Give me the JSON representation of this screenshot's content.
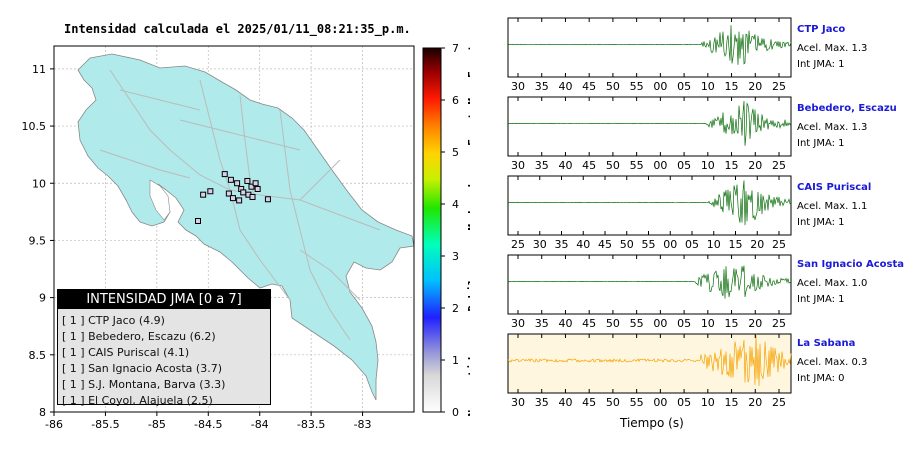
{
  "header": {
    "title": "Intensidad calculada el 2025/01/11_08:21:35_p.m."
  },
  "colorbar": {
    "ticks": [
      "0",
      "1",
      "2",
      "3",
      "4",
      "5",
      "6",
      "7"
    ],
    "categories": [
      "No sentido",
      "Debil",
      "Moderado",
      "Fuerte",
      "Muy Fuerte"
    ]
  },
  "legend": {
    "title": "INTENSIDAD JMA [0 a 7]",
    "items": [
      "[ 1 ]  CTP Jaco (4.9)",
      "[ 1 ]  Bebedero, Escazu (6.2)",
      "[ 1 ]  CAIS Puriscal (4.1)",
      "[ 1 ]  San Ignacio Acosta (3.7)",
      "[ 1 ]  S.J. Montana, Barva (3.3)",
      "[ 1 ]  El Coyol, Alajuela (2.5)"
    ]
  },
  "stations": [
    {
      "name": "CTP Jaco",
      "acel": "Acel. Max. 1.3",
      "int": "Int JMA: 1"
    },
    {
      "name": "Bebedero, Escazu",
      "acel": "Acel. Max. 1.3",
      "int": "Int JMA: 1"
    },
    {
      "name": "CAIS Puriscal",
      "acel": "Acel. Max. 1.1",
      "int": "Int JMA: 1"
    },
    {
      "name": "San Ignacio Acosta",
      "acel": "Acel. Max. 1.0",
      "int": "Int JMA: 1"
    },
    {
      "name": "La Sabana",
      "acel": "Acel. Max. 0.3",
      "int": "Int JMA: 0"
    }
  ],
  "xaxis_label": "Tiempo (s)",
  "chart_data": [
    {
      "type": "scatter",
      "title": "Intensidad calculada el 2025/01/11_08:21:35_p.m.",
      "xlim": [
        -86,
        -82.5
      ],
      "ylim": [
        8,
        11.2
      ],
      "xticks": [
        "-86",
        "-85.5",
        "-85",
        "-84.5",
        "-84",
        "-83.5",
        "-83"
      ],
      "yticks": [
        "8",
        "8.5",
        "9",
        "9.5",
        "10",
        "10.5",
        "11"
      ],
      "grid": true,
      "legend_position": "bottom-left",
      "colorbar_range": [
        0,
        7
      ],
      "points": [
        {
          "x": -84.55,
          "y": 9.9,
          "intensity": 1
        },
        {
          "x": -84.48,
          "y": 9.93,
          "intensity": 1
        },
        {
          "x": -84.34,
          "y": 10.08,
          "intensity": 1
        },
        {
          "x": -84.28,
          "y": 10.03,
          "intensity": 1
        },
        {
          "x": -84.22,
          "y": 10.0,
          "intensity": 1
        },
        {
          "x": -84.18,
          "y": 9.95,
          "intensity": 1
        },
        {
          "x": -84.12,
          "y": 10.02,
          "intensity": 1
        },
        {
          "x": -84.08,
          "y": 9.97,
          "intensity": 1
        },
        {
          "x": -84.04,
          "y": 10.0,
          "intensity": 1
        },
        {
          "x": -84.3,
          "y": 9.91,
          "intensity": 1
        },
        {
          "x": -84.26,
          "y": 9.87,
          "intensity": 1
        },
        {
          "x": -84.16,
          "y": 9.92,
          "intensity": 1
        },
        {
          "x": -84.11,
          "y": 9.9,
          "intensity": 1
        },
        {
          "x": -84.2,
          "y": 9.85,
          "intensity": 1
        },
        {
          "x": -84.07,
          "y": 9.88,
          "intensity": 1
        },
        {
          "x": -84.02,
          "y": 9.95,
          "intensity": 1
        },
        {
          "x": -83.92,
          "y": 9.86,
          "intensity": 1
        },
        {
          "x": -84.6,
          "y": 9.67,
          "intensity": 1
        }
      ]
    },
    {
      "type": "line",
      "xlabel": "Tiempo (s)",
      "series": [
        {
          "name": "CTP Jaco",
          "x_ticks": [
            "30",
            "35",
            "40",
            "45",
            "50",
            "55",
            "00",
            "05",
            "10",
            "15",
            "20",
            "25"
          ],
          "color": "#0a6e0a",
          "burst_start": 0.685,
          "burst_peak": 0.82,
          "amplitude": 0.9
        },
        {
          "name": "Bebedero, Escazu",
          "x_ticks": [
            "30",
            "35",
            "40",
            "45",
            "50",
            "55",
            "00",
            "05",
            "10",
            "15",
            "20",
            "25"
          ],
          "color": "#0a6e0a",
          "burst_start": 0.7,
          "burst_peak": 0.84,
          "amplitude": 0.85
        },
        {
          "name": "CAIS Puriscal",
          "x_ticks": [
            "25",
            "30",
            "35",
            "40",
            "45",
            "50",
            "55",
            "00",
            "05",
            "10",
            "15",
            "20",
            "25"
          ],
          "color": "#0a6e0a",
          "burst_start": 0.71,
          "burst_peak": 0.85,
          "amplitude": 0.95
        },
        {
          "name": "San Ignacio Acosta",
          "x_ticks": [
            "30",
            "35",
            "40",
            "45",
            "50",
            "55",
            "00",
            "05",
            "10",
            "15",
            "20",
            "25"
          ],
          "color": "#0a6e0a",
          "burst_start": 0.66,
          "burst_peak": 0.81,
          "amplitude": 0.95
        },
        {
          "name": "La Sabana",
          "x_ticks": [
            "30",
            "35",
            "40",
            "45",
            "50",
            "55",
            "00",
            "05",
            "10",
            "15",
            "20",
            "25"
          ],
          "color": "#f5a300",
          "burst_start": 0.68,
          "burst_peak": 0.88,
          "amplitude": 0.9
        }
      ]
    }
  ]
}
